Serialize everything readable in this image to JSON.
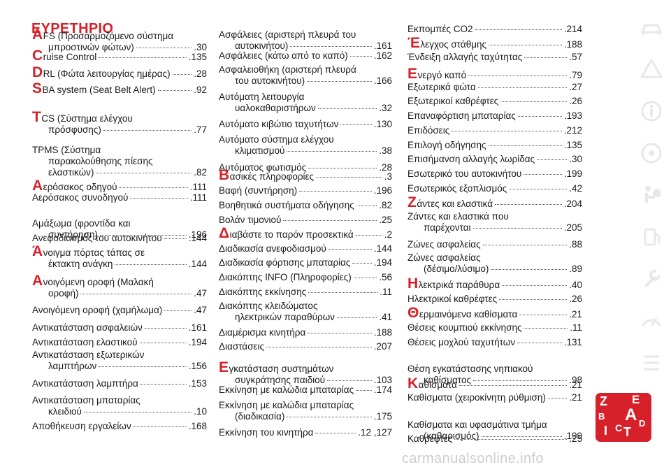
{
  "title": "ΕΥΡΕΤΗΡΙΟ",
  "columns": [
    [
      {
        "lines": [
          {
            "l": "Α",
            "t": "FS (Προσαρμοζόμενο σύστημα"
          },
          {
            "t": "μπροστινών φώτων)",
            "p": ".30",
            "ind": true
          }
        ]
      },
      {
        "lines": [
          {
            "l": "C",
            "t": "ruise Control",
            "p": ".135"
          }
        ]
      },
      {
        "lines": [
          {
            "l": "D",
            "t": "RL (Φώτα λειτουργίας ημέρας)",
            "p": ".28"
          }
        ]
      },
      {
        "lines": [
          {
            "l": "S",
            "t": "BA system (Seat Belt Alert)",
            "p": ".92"
          }
        ]
      },
      {
        "lines": [
          {
            "l": "T",
            "t": "CS (Σύστημα ελέγχου"
          },
          {
            "t": "πρόσφυσης)",
            "p": ".77",
            "ind": true
          }
        ]
      },
      {
        "lines": [
          {
            "t": "TPMS (Σύστημα"
          },
          {
            "t": "παρακολούθησης πίεσης",
            "ind": true
          },
          {
            "t": "ελαστικών)",
            "p": ".82",
            "ind": true
          }
        ]
      },
      {
        "lines": [
          {
            "l": "Α",
            "t": "ερόσακος οδηγού",
            "p": ".111"
          }
        ]
      },
      {
        "lines": [
          {
            "t": "Αερόσακος συνοδηγού",
            "p": ".111"
          }
        ]
      },
      {
        "lines": [
          {
            "t": "Αμάξωμα (φροντίδα και"
          },
          {
            "t": "συντήρηση)",
            "p": ".196",
            "ind": true
          }
        ]
      },
      {
        "lines": [
          {
            "t": "Ανεφοδιασμός του αυτοκινήτου",
            "p": ".144"
          }
        ]
      },
      {
        "lines": [
          {
            "l": "Ά",
            "t": "νοιγμα πόρτας τάπας σε"
          },
          {
            "t": "έκτακτη ανάγκη",
            "p": ".144",
            "ind": true
          }
        ]
      },
      {
        "lines": [
          {
            "l": "Α",
            "t": "νοιγόμενη οροφή (Μαλακή"
          },
          {
            "t": "οροφή)",
            "p": ".47",
            "ind": true
          }
        ]
      },
      {
        "lines": [
          {
            "t": "Ανοιγόμενη οροφή (χαμήλωμα)",
            "p": ".47"
          }
        ]
      },
      {
        "lines": [
          {
            "t": "Αντικατάσταση ασφαλειών",
            "p": ".161"
          }
        ]
      },
      {
        "lines": [
          {
            "t": "Αντικατάσταση ελαστικού",
            "p": ".194"
          }
        ]
      },
      {
        "lines": [
          {
            "t": "Αντικατάσταση εξωτερικών"
          },
          {
            "t": "λαμπτήρων",
            "p": ".156",
            "ind": true
          }
        ]
      },
      {
        "lines": [
          {
            "t": "Αντικατάσταση λαμπτήρα",
            "p": ".153"
          }
        ]
      },
      {
        "lines": [
          {
            "t": "Αντικατάσταση μπαταρίας"
          },
          {
            "t": "κλειδιού",
            "p": ".10",
            "ind": true
          }
        ]
      },
      {
        "lines": [
          {
            "t": "Αποθήκευση εργαλείων",
            "p": ".168"
          }
        ]
      }
    ],
    [
      {
        "lines": [
          {
            "t": "Ασφάλειες (αριστερή πλευρά του"
          },
          {
            "t": "αυτοκινήτου)",
            "p": ".161",
            "ind": true
          }
        ]
      },
      {
        "lines": [
          {
            "t": "Ασφάλειες (κάτω από το καπό)",
            "p": ".162"
          }
        ]
      },
      {
        "lines": [
          {
            "t": "Ασφαλειοθήκη (αριστερή πλευρά"
          },
          {
            "t": "του αυτοκινήτου)",
            "p": ".166",
            "ind": true
          }
        ]
      },
      {
        "lines": [
          {
            "t": "Αυτόματη λειτουργία"
          },
          {
            "t": "υαλοκαθαριστήρων",
            "p": ".32",
            "ind": true
          }
        ]
      },
      {
        "lines": [
          {
            "t": "Αυτόματο κιβώτιο ταχυτήτων",
            "p": ".130"
          }
        ]
      },
      {
        "lines": [
          {
            "t": "Αυτόματο σύστημα ελέγχου"
          },
          {
            "t": "κλιματισμού",
            "p": ".38",
            "ind": true
          }
        ]
      },
      {
        "lines": [
          {
            "t": "Αυτόματος φωτισμός",
            "p": ".28"
          }
        ]
      },
      {
        "lines": [
          {
            "l": "Β",
            "t": "ασικές πληροφορίες",
            "p": ".3"
          }
        ]
      },
      {
        "lines": [
          {
            "t": "Βαφή (συντήρηση)",
            "p": ".196"
          }
        ]
      },
      {
        "lines": [
          {
            "t": "Βοηθητικά συστήματα οδήγησης",
            "p": ".82"
          }
        ]
      },
      {
        "lines": [
          {
            "t": "Βολάν τιμονιού",
            "p": ".25"
          }
        ]
      },
      {
        "lines": [
          {
            "l": "Δ",
            "t": "ιαβάστε το παρόν προσεκτικά",
            "p": ".2"
          }
        ]
      },
      {
        "lines": [
          {
            "t": "Διαδικασία ανεφοδιασμού",
            "p": ".144"
          }
        ]
      },
      {
        "lines": [
          {
            "t": "Διαδικασία φόρτισης μπαταρίας",
            "p": ".194"
          }
        ]
      },
      {
        "lines": [
          {
            "t": "Διακόπτης INFO (Πληροφορίες)",
            "p": ".56"
          }
        ]
      },
      {
        "lines": [
          {
            "t": "Διακόπτης εκκίνησης",
            "p": ".11"
          }
        ]
      },
      {
        "lines": [
          {
            "t": "Διακόπτης κλειδώματος"
          },
          {
            "t": "ηλεκτρικών παραθύρων",
            "p": ".41",
            "ind": true
          }
        ]
      },
      {
        "lines": [
          {
            "t": "Διαμέρισμα κινητήρα",
            "p": ".188"
          }
        ]
      },
      {
        "lines": [
          {
            "t": "Διαστάσεις",
            "p": ".207"
          }
        ]
      },
      {
        "lines": [
          {
            "l": "Ε",
            "t": "γκατάσταση συστημάτων"
          },
          {
            "t": "συγκράτησης παιδιού",
            "p": ".103",
            "ind": true
          }
        ]
      },
      {
        "lines": [
          {
            "t": "Εκκίνηση με καλώδια μπαταρίας",
            "p": ".174"
          }
        ]
      },
      {
        "lines": [
          {
            "t": "Εκκίνηση με καλώδια μπαταρίας"
          },
          {
            "t": "(διαδικασία)",
            "p": ".175",
            "ind": true
          }
        ]
      },
      {
        "lines": [
          {
            "t": "Εκκίνηση του κινητήρα",
            "p": ".12 ,127"
          }
        ]
      }
    ],
    [
      {
        "lines": [
          {
            "t": "Εκπομπές CO2",
            "p": ".214"
          }
        ]
      },
      {
        "lines": [
          {
            "l": "Έ",
            "t": "λεγχος στάθμης",
            "p": ".188"
          }
        ]
      },
      {
        "lines": [
          {
            "t": "Ένδειξη αλλαγής ταχύτητας",
            "p": ".57"
          }
        ]
      },
      {
        "lines": [
          {
            "l": "Ε",
            "t": "νεργό καπό",
            "p": ".79"
          }
        ]
      },
      {
        "lines": [
          {
            "t": "Εξωτερικά φώτα",
            "p": ".27"
          }
        ]
      },
      {
        "lines": [
          {
            "t": "Εξωτερικοί καθρέφτες",
            "p": ".26"
          }
        ]
      },
      {
        "lines": [
          {
            "t": "Επαναφόρτιση μπαταρίας",
            "p": ".193"
          }
        ]
      },
      {
        "lines": [
          {
            "t": "Επιδόσεις",
            "p": ".212"
          }
        ]
      },
      {
        "lines": [
          {
            "t": "Επιλογή οδήγησης",
            "p": ".135"
          }
        ]
      },
      {
        "lines": [
          {
            "t": "Επισήμανση αλλαγής λωρίδας",
            "p": ".30"
          }
        ]
      },
      {
        "lines": [
          {
            "t": "Εσωτερικό του αυτοκινήτου",
            "p": ".199"
          }
        ]
      },
      {
        "lines": [
          {
            "t": "Εσωτερικός εξοπλισμός",
            "p": ".42"
          }
        ]
      },
      {
        "lines": [
          {
            "l": "Ζ",
            "t": "άντες και ελαστικά",
            "p": ".204"
          }
        ]
      },
      {
        "lines": [
          {
            "t": "Ζάντες και ελαστικά που"
          },
          {
            "t": "παρέχονται",
            "p": ".205",
            "ind": true
          }
        ]
      },
      {
        "lines": [
          {
            "t": "Ζώνες ασφαλείας",
            "p": ".88"
          }
        ]
      },
      {
        "lines": [
          {
            "t": "Ζώνες ασφαλείας"
          },
          {
            "t": "(δέσιμο/λύσιμο)",
            "p": ".89",
            "ind": true
          }
        ]
      },
      {
        "lines": [
          {
            "l": "Η",
            "t": "λεκτρικά παράθυρα",
            "p": ".40"
          }
        ]
      },
      {
        "lines": [
          {
            "t": "Ηλεκτρικοί καθρέφτες",
            "p": ".26"
          }
        ]
      },
      {
        "lines": [
          {
            "l": "Θ",
            "t": "ερμαινόμενα καθίσματα",
            "p": ".21"
          }
        ]
      },
      {
        "lines": [
          {
            "t": "Θέσεις κουμπιού εκκίνησης",
            "p": ".11"
          }
        ]
      },
      {
        "lines": [
          {
            "t": "Θέσεις μοχλού ταχυτήτων",
            "p": ".131"
          }
        ]
      },
      {
        "lines": [
          {
            "t": "Θέση εγκατάστασης νηπιακού"
          },
          {
            "t": "καθίσματος",
            "p": ".98",
            "ind": true
          }
        ]
      },
      {
        "lines": [
          {
            "l": "Κ",
            "t": "αθίσματα",
            "p": ".21"
          }
        ]
      },
      {
        "lines": [
          {
            "t": "Καθίσματα (χειροκίνητη ρύθμιση)",
            "p": ".21"
          }
        ]
      },
      {
        "lines": [
          {
            "t": "Καθίσματα και υφασμάτινα τμήμα"
          },
          {
            "t": "(καθαρισμός)",
            "p": ".199",
            "ind": true
          }
        ]
      },
      {
        "lines": [
          {
            "t": "Καθρέφτες",
            "p": ".25"
          }
        ]
      }
    ]
  ],
  "badge_letters": [
    "Z",
    "E",
    "B",
    "A",
    "I",
    "C",
    "T",
    "D"
  ],
  "sidebar_icons": [
    "car-dashboard-icon",
    "warning-lights-icon",
    "info-icon",
    "steering-wheel-icon",
    "airbag-icon",
    "fuel-pump-icon",
    "wrench-icon",
    "gauge-icon",
    "spec-icon"
  ],
  "watermark": "carmanualsonline.info"
}
